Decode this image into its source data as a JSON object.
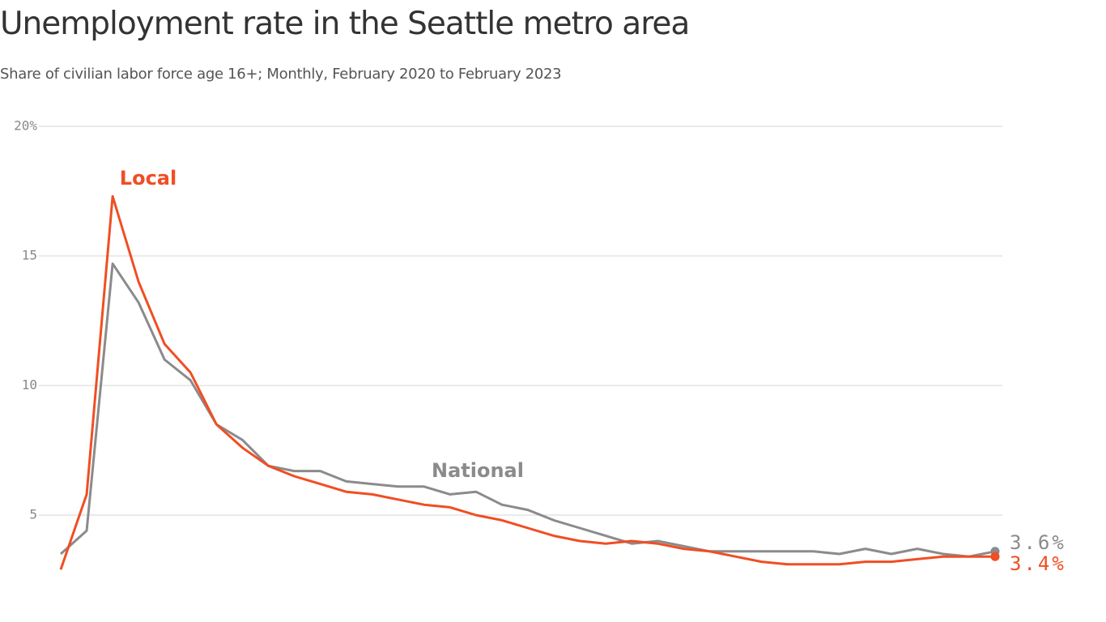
{
  "chart_data": {
    "type": "line",
    "title": "Unemployment rate in the Seattle metro area",
    "subtitle": "Share of civilian labor force age 16+; Monthly, February 2020 to February 2023",
    "categories": [
      null,
      null,
      null,
      null,
      null,
      null,
      null,
      null,
      null,
      null,
      null,
      null,
      null,
      null,
      null,
      null,
      null,
      null,
      null,
      null,
      null,
      null,
      null,
      null,
      null,
      null,
      null,
      null,
      null,
      null,
      null,
      null,
      null,
      null,
      null,
      null,
      null
    ],
    "ylim": [
      2.4,
      20
    ],
    "yticks": [
      5,
      10,
      15,
      {
        "value": 20,
        "label": "20%"
      }
    ],
    "grid": true,
    "series": [
      {
        "name": "National",
        "color": "#8c8a8b",
        "values": [
          3.5,
          4.4,
          14.7,
          13.2,
          11.0,
          10.2,
          8.5,
          7.9,
          6.9,
          6.7,
          6.7,
          6.3,
          6.2,
          6.1,
          6.1,
          5.8,
          5.9,
          5.4,
          5.2,
          4.8,
          4.5,
          4.2,
          3.9,
          4.0,
          3.8,
          3.6,
          3.6,
          3.6,
          3.6,
          3.6,
          3.5,
          3.7,
          3.5,
          3.7,
          3.5,
          3.4,
          3.6
        ],
        "value_labels": [
          null,
          null,
          null,
          null,
          null,
          null,
          null,
          null,
          null,
          null,
          null,
          null,
          null,
          null,
          null,
          null,
          null,
          null,
          null,
          null,
          null,
          null,
          null,
          null,
          null,
          null,
          null,
          null,
          null,
          null,
          null,
          null,
          null,
          null,
          null,
          null,
          "3.6%"
        ]
      },
      {
        "name": "Local",
        "color": "#f04e23",
        "values": [
          2.9,
          5.8,
          17.3,
          14.0,
          11.6,
          10.5,
          8.5,
          7.6,
          6.9,
          6.5,
          6.2,
          5.9,
          5.8,
          5.6,
          5.4,
          5.3,
          5.0,
          4.8,
          4.5,
          4.2,
          4.0,
          3.9,
          4.0,
          3.9,
          3.7,
          3.6,
          3.4,
          3.2,
          3.1,
          3.1,
          3.1,
          3.2,
          3.2,
          3.3,
          3.4,
          3.4,
          3.4
        ],
        "value_labels": [
          null,
          null,
          null,
          null,
          null,
          null,
          null,
          null,
          null,
          null,
          null,
          null,
          null,
          null,
          null,
          null,
          null,
          null,
          null,
          null,
          null,
          null,
          null,
          null,
          null,
          null,
          null,
          null,
          null,
          null,
          null,
          null,
          null,
          null,
          null,
          null,
          "3.4%"
        ]
      }
    ]
  }
}
